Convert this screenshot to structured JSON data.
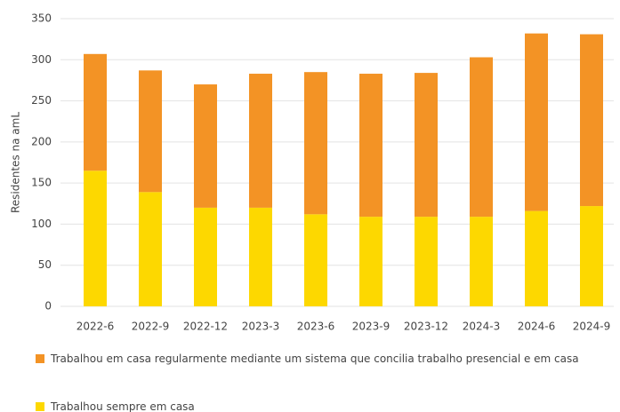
{
  "chart_data": {
    "type": "bar",
    "stacked": true,
    "y_label": "Residentes na amL",
    "categories": [
      "2022-6",
      "2022-9",
      "2022-12",
      "2023-3",
      "2023-6",
      "2023-9",
      "2023-12",
      "2024-3",
      "2024-6",
      "2024-9"
    ],
    "series": [
      {
        "name": "Trabalhou em casa regularmente mediante um sistema que concilia trabalho presencial e em casa",
        "color": "#f39325",
        "values": [
          142,
          148,
          150,
          163,
          173,
          174,
          175,
          194,
          216,
          209
        ]
      },
      {
        "name": "Trabalhou sempre em casa",
        "color": "#fdd800",
        "values": [
          165,
          139,
          120,
          120,
          112,
          109,
          109,
          109,
          116,
          122
        ]
      }
    ],
    "ylim": [
      0,
      350
    ],
    "yticks": [
      0,
      50,
      100,
      150,
      200,
      250,
      300,
      350
    ],
    "grid": true
  }
}
